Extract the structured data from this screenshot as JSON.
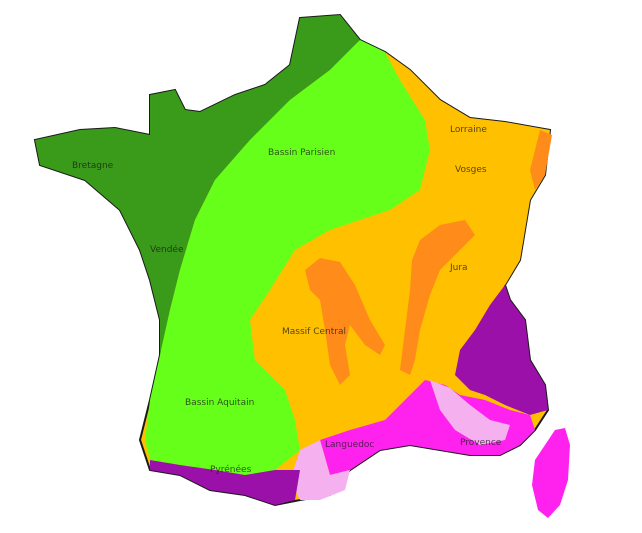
{
  "map": {
    "colors": {
      "background": "#ffffff",
      "armorican_massif": "#3a9a1a",
      "sedimentary_basins": "#66ff1a",
      "hercynian_massifs": "#ffc000",
      "uplift_zones": "#ff8c1a",
      "alpine_zone": "#9a10a8",
      "mediterranean_zone": "#ff22ee",
      "light_pink": "#f5b0f0",
      "outline": "#1a1a1a"
    },
    "labels": {
      "bretagne": "Bretagne",
      "bassin_parisien": "Bassin Parisien",
      "lorraine": "Lorraine",
      "vosges": "Vosges",
      "vendee": "Vendée",
      "massif_central": "Massif Central",
      "jura": "Jura",
      "bassin_aquitain": "Bassin Aquitain",
      "pyrenees": "Pyrénées",
      "languedoc": "Languedoc",
      "provence": "Provence"
    }
  }
}
